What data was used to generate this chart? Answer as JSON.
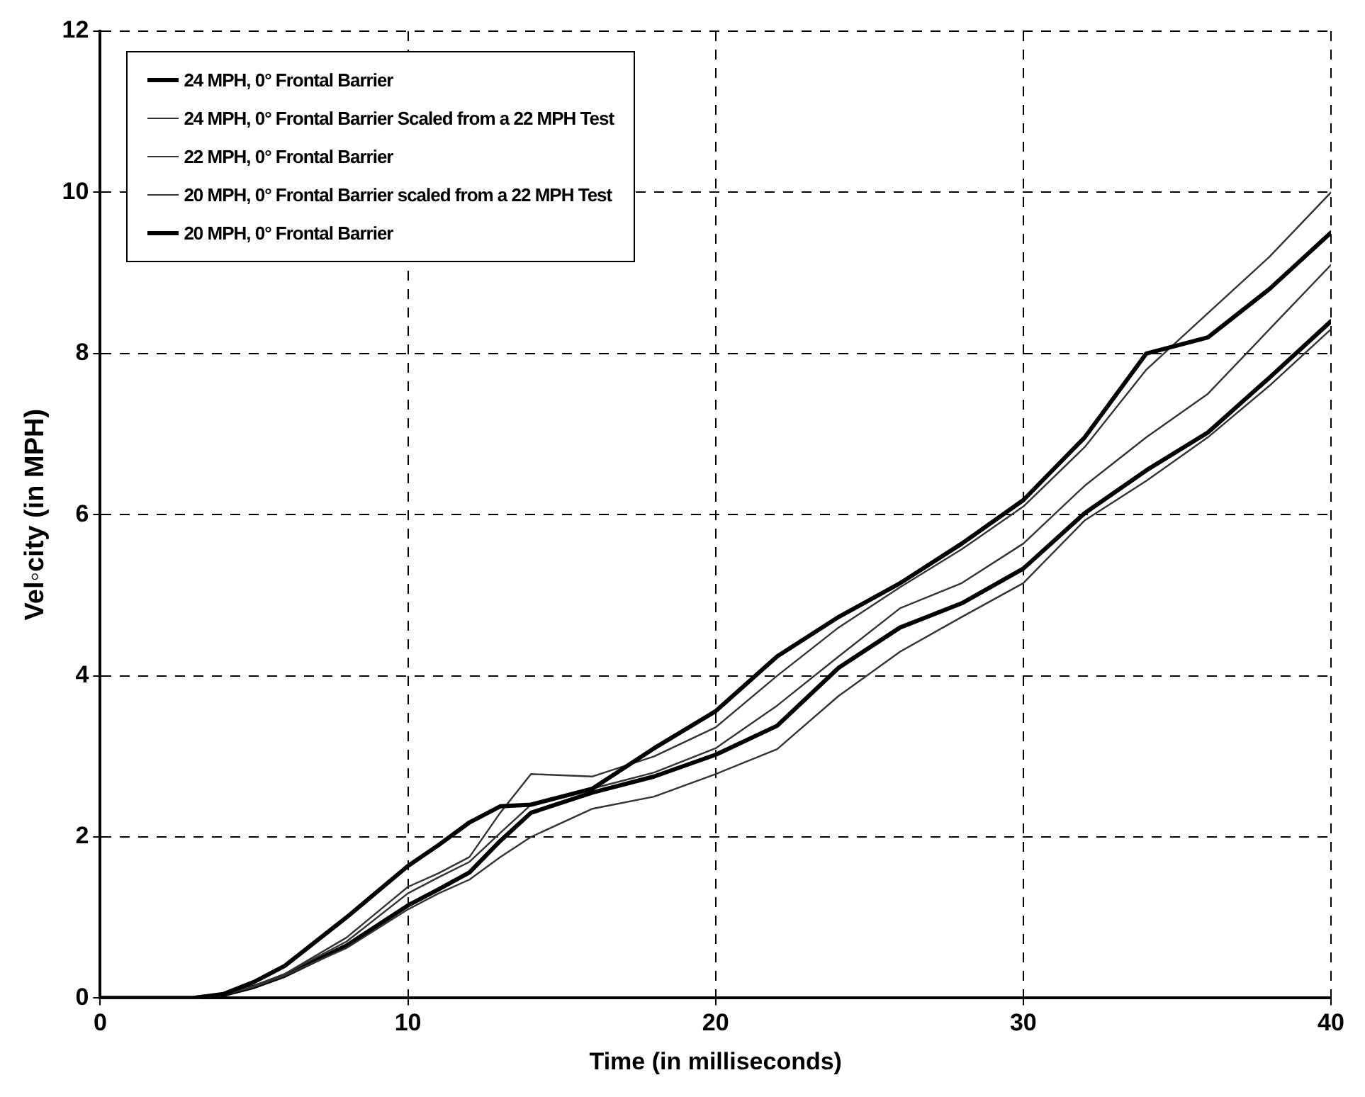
{
  "chart_data": {
    "type": "line",
    "xlabel": "Time (in milliseconds)",
    "ylabel": "Vel◦city (in MPH)",
    "x": [
      0,
      2,
      3,
      4,
      5,
      6,
      8,
      10,
      11,
      12,
      13,
      14,
      16,
      18,
      20,
      22,
      24,
      26,
      28,
      30,
      32,
      34,
      36,
      38,
      40
    ],
    "xlim": [
      0,
      40
    ],
    "xticks": [
      0,
      10,
      20,
      30,
      40
    ],
    "ylim": [
      0,
      12
    ],
    "yticks": [
      0,
      2,
      4,
      6,
      8,
      10,
      12
    ],
    "grid": true,
    "legend": "top left",
    "line_style": "solid",
    "marker": "none",
    "series": [
      {
        "name": "24 MPH, 0° Frontal Barrier",
        "color": "#000000",
        "values": [
          0,
          0,
          0,
          0.05,
          0.2,
          0.4,
          1.0,
          1.64,
          1.9,
          2.18,
          2.38,
          2.4,
          2.6,
          3.1,
          3.56,
          4.24,
          4.73,
          5.15,
          5.64,
          6.18,
          6.96,
          8.0,
          8.2,
          8.8,
          9.5
        ]
      },
      {
        "name": "24 MPH, 0° Frontal Barrier Scaled from a 22 MPH Test",
        "color": "#333333",
        "values": [
          0,
          0,
          0,
          0.04,
          0.15,
          0.3,
          0.75,
          1.38,
          1.55,
          1.75,
          2.3,
          2.78,
          2.75,
          3.0,
          3.36,
          4.0,
          4.6,
          5.1,
          5.57,
          6.1,
          6.84,
          7.8,
          8.5,
          9.2,
          10.0
        ]
      },
      {
        "name": "22 MPH, 0° Frontal Barrier",
        "color": "#333333",
        "values": [
          0,
          0,
          0,
          0.04,
          0.15,
          0.3,
          0.7,
          1.3,
          1.5,
          1.69,
          2.05,
          2.4,
          2.6,
          2.8,
          3.1,
          3.63,
          4.24,
          4.84,
          5.15,
          5.64,
          6.36,
          6.96,
          7.5,
          8.3,
          9.1
        ]
      },
      {
        "name": "20 MPH, 0° Frontal Barrier scaled from a 22 MPH Test",
        "color": "#333333",
        "values": [
          0,
          0,
          0,
          0.04,
          0.14,
          0.28,
          0.62,
          1.1,
          1.3,
          1.47,
          1.75,
          2.0,
          2.35,
          2.5,
          2.78,
          3.09,
          3.75,
          4.3,
          4.73,
          5.15,
          5.93,
          6.42,
          6.96,
          7.6,
          8.3
        ]
      },
      {
        "name": "20 MPH, 0° Frontal Barrier",
        "color": "#000000",
        "values": [
          0,
          0,
          0,
          0.04,
          0.14,
          0.28,
          0.65,
          1.15,
          1.35,
          1.56,
          1.95,
          2.3,
          2.55,
          2.75,
          3.02,
          3.38,
          4.1,
          4.6,
          4.9,
          5.33,
          6.02,
          6.55,
          7.02,
          7.7,
          8.4
        ]
      }
    ]
  }
}
